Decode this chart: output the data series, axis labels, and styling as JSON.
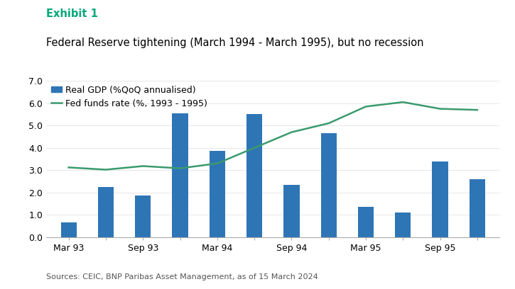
{
  "exhibit_label": "Exhibit 1",
  "exhibit_label_color": "#00A87A",
  "title": "Federal Reserve tightening (March 1994 - March 1995), but no recession",
  "title_fontsize": 10.5,
  "exhibit_fontsize": 10.5,
  "bar_color": "#2E75B6",
  "line_color": "#3A9A6E",
  "bar_label": "Real GDP (%QoQ annualised)",
  "line_label": "Fed funds rate (%, 1993 - 1995)",
  "source_text": "Sources: CEIC, BNP Paribas Asset Management, as of 15 March 2024",
  "bar_x_positions": [
    0,
    2,
    4,
    6,
    8,
    10,
    12,
    14,
    16,
    18,
    20,
    22
  ],
  "bar_values": [
    0.65,
    2.25,
    1.85,
    5.55,
    3.85,
    5.5,
    2.35,
    4.65,
    1.35,
    1.1,
    3.4,
    2.6
  ],
  "bar_tick_labels": [
    "Mar 93",
    "",
    "Sep 93",
    "",
    "Mar 94",
    "",
    "Sep 94",
    "",
    "Mar 95",
    "",
    "Sep 95",
    ""
  ],
  "bar_tick_positions": [
    0,
    2,
    4,
    6,
    8,
    10,
    12,
    14,
    16,
    18,
    20,
    22
  ],
  "line_x_positions": [
    0,
    2,
    4,
    6,
    8,
    10,
    12,
    14,
    16,
    18,
    20,
    22
  ],
  "line_values": [
    3.12,
    3.02,
    3.18,
    3.08,
    3.3,
    4.0,
    4.7,
    5.1,
    5.85,
    6.05,
    5.75,
    5.7
  ],
  "ylim": [
    0,
    7.0
  ],
  "yticks": [
    0.0,
    1.0,
    2.0,
    3.0,
    4.0,
    5.0,
    6.0,
    7.0
  ],
  "ytick_labels": [
    "0.0",
    "1.0",
    "2.0",
    "3.0",
    "4.0",
    "5.0",
    "6.0",
    "7.0"
  ],
  "bar_width": 0.85,
  "background_color": "#FFFFFF",
  "grid_color": "#DDDDDD",
  "tick_label_fontsize": 9,
  "legend_fontsize": 9,
  "source_fontsize": 8
}
